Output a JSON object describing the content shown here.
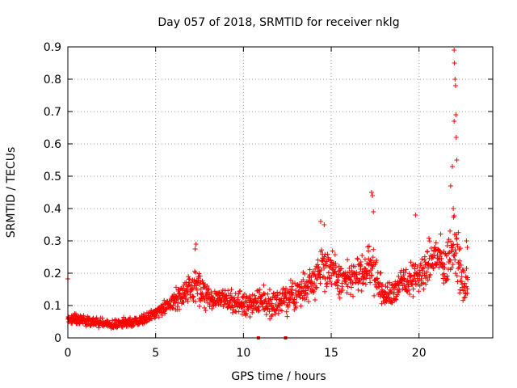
{
  "chart_data": {
    "type": "scatter",
    "title": "Day 057 of 2018, SRMTID for receiver nklg",
    "xlabel": "GPS time / hours",
    "ylabel": "SRMTID / TECUs",
    "xlim": [
      0,
      24.2
    ],
    "ylim": [
      0,
      0.9
    ],
    "x_ticks": [
      0,
      5,
      10,
      15,
      20
    ],
    "x_tick_labels": [
      "0",
      "5",
      "10",
      "15",
      "20"
    ],
    "y_ticks": [
      0,
      0.1,
      0.2,
      0.3,
      0.4,
      0.5,
      0.6,
      0.7,
      0.8,
      0.9
    ],
    "y_tick_labels": [
      "0",
      "0.1",
      "0.2",
      "0.3",
      "0.4",
      "0.5",
      "0.6",
      "0.7",
      "0.8",
      "0.9"
    ],
    "grid": true,
    "marker": "plus",
    "color": "#ff0000",
    "envelope": [
      {
        "x": 0.0,
        "base": 0.055,
        "spread": 0.025
      },
      {
        "x": 1.0,
        "base": 0.055,
        "spread": 0.025
      },
      {
        "x": 1.5,
        "base": 0.045,
        "spread": 0.02
      },
      {
        "x": 2.5,
        "base": 0.04,
        "spread": 0.02
      },
      {
        "x": 3.5,
        "base": 0.045,
        "spread": 0.02
      },
      {
        "x": 4.5,
        "base": 0.06,
        "spread": 0.025
      },
      {
        "x": 5.5,
        "base": 0.09,
        "spread": 0.03
      },
      {
        "x": 6.5,
        "base": 0.13,
        "spread": 0.05
      },
      {
        "x": 7.3,
        "base": 0.15,
        "spread": 0.08
      },
      {
        "x": 8.0,
        "base": 0.12,
        "spread": 0.05
      },
      {
        "x": 9.0,
        "base": 0.11,
        "spread": 0.05
      },
      {
        "x": 10.0,
        "base": 0.1,
        "spread": 0.05
      },
      {
        "x": 11.0,
        "base": 0.11,
        "spread": 0.06
      },
      {
        "x": 12.0,
        "base": 0.1,
        "spread": 0.06
      },
      {
        "x": 13.0,
        "base": 0.13,
        "spread": 0.07
      },
      {
        "x": 14.0,
        "base": 0.17,
        "spread": 0.08
      },
      {
        "x": 14.5,
        "base": 0.22,
        "spread": 0.1
      },
      {
        "x": 15.5,
        "base": 0.17,
        "spread": 0.08
      },
      {
        "x": 16.5,
        "base": 0.18,
        "spread": 0.08
      },
      {
        "x": 17.3,
        "base": 0.22,
        "spread": 0.1
      },
      {
        "x": 18.0,
        "base": 0.12,
        "spread": 0.05
      },
      {
        "x": 19.0,
        "base": 0.16,
        "spread": 0.07
      },
      {
        "x": 20.0,
        "base": 0.18,
        "spread": 0.08
      },
      {
        "x": 21.0,
        "base": 0.25,
        "spread": 0.1
      },
      {
        "x": 21.5,
        "base": 0.2,
        "spread": 0.1
      },
      {
        "x": 22.0,
        "base": 0.3,
        "spread": 0.15
      },
      {
        "x": 22.5,
        "base": 0.15,
        "spread": 0.08
      },
      {
        "x": 22.8,
        "base": 0.15,
        "spread": 0.08
      }
    ],
    "spikes": [
      {
        "x": 7.3,
        "y": 0.29
      },
      {
        "x": 7.25,
        "y": 0.275
      },
      {
        "x": 14.4,
        "y": 0.36
      },
      {
        "x": 14.6,
        "y": 0.35
      },
      {
        "x": 17.3,
        "y": 0.45
      },
      {
        "x": 17.35,
        "y": 0.44
      },
      {
        "x": 17.4,
        "y": 0.39
      },
      {
        "x": 19.8,
        "y": 0.38
      },
      {
        "x": 21.8,
        "y": 0.47
      },
      {
        "x": 21.9,
        "y": 0.53
      },
      {
        "x": 22.0,
        "y": 0.89
      },
      {
        "x": 22.02,
        "y": 0.85
      },
      {
        "x": 22.05,
        "y": 0.8
      },
      {
        "x": 22.08,
        "y": 0.78
      },
      {
        "x": 22.1,
        "y": 0.69
      },
      {
        "x": 22.0,
        "y": 0.67
      },
      {
        "x": 22.12,
        "y": 0.62
      },
      {
        "x": 22.15,
        "y": 0.55
      },
      {
        "x": 21.95,
        "y": 0.4
      },
      {
        "x": 22.7,
        "y": 0.3
      },
      {
        "x": 22.75,
        "y": 0.28
      }
    ],
    "zero_marks": [
      10.85,
      12.4
    ]
  }
}
